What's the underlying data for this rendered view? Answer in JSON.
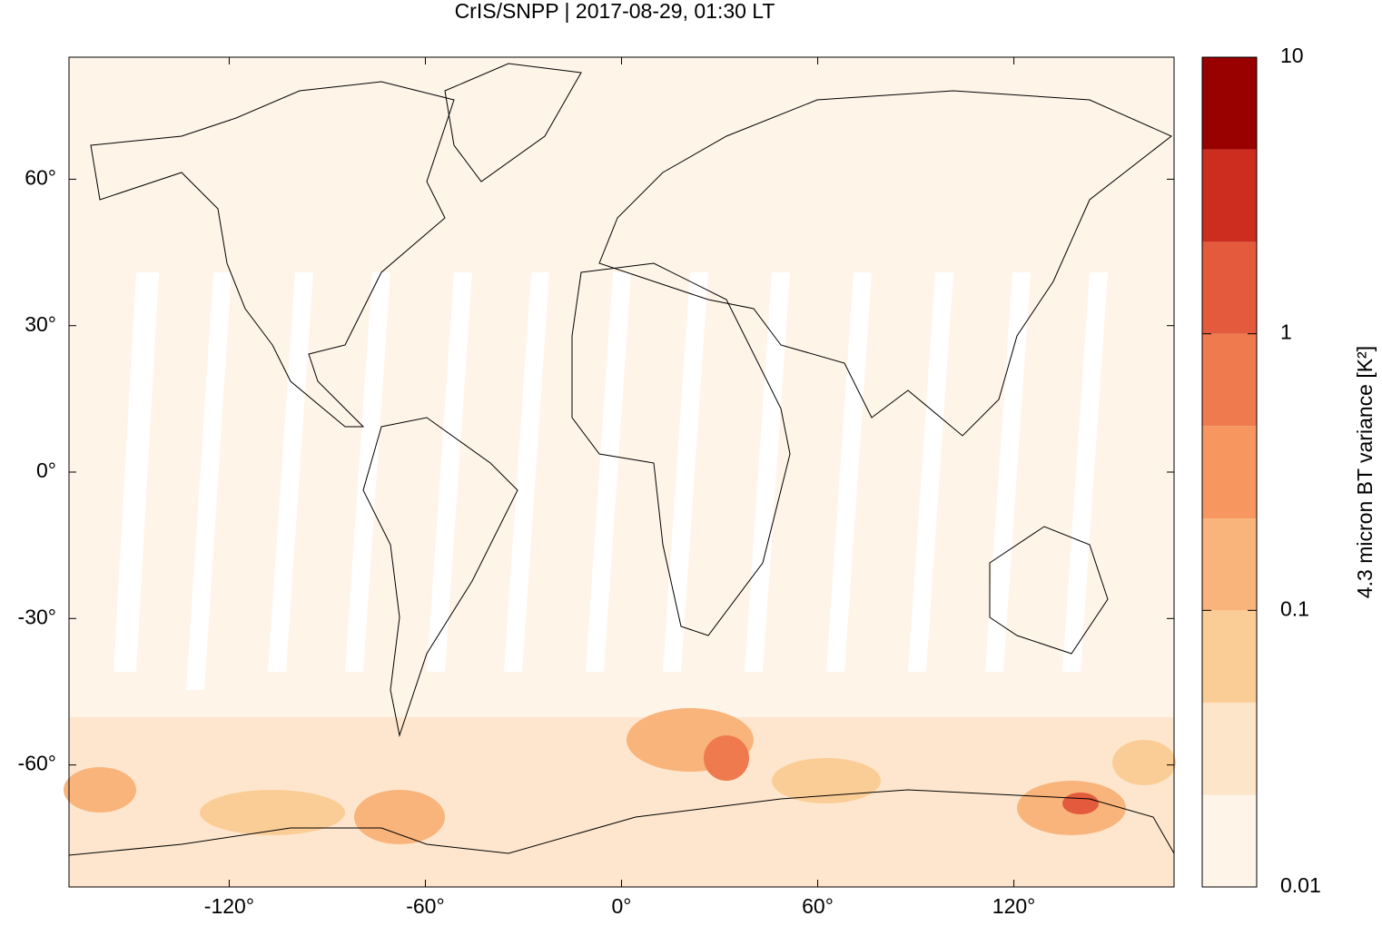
{
  "chart_data": {
    "type": "map",
    "title": "CrIS/SNPP | 2017-08-29, 01:30 LT",
    "xlim": [
      -169,
      169
    ],
    "ylim": [
      -85,
      85
    ],
    "xticks": [
      {
        "value": -120,
        "label": "-120°"
      },
      {
        "value": -60,
        "label": "-60°"
      },
      {
        "value": 0,
        "label": "0°"
      },
      {
        "value": 60,
        "label": "60°"
      },
      {
        "value": 120,
        "label": "120°"
      }
    ],
    "yticks": [
      {
        "value": 60,
        "label": "60°"
      },
      {
        "value": 30,
        "label": "30°"
      },
      {
        "value": 0,
        "label": "0°"
      },
      {
        "value": -30,
        "label": "-30°"
      },
      {
        "value": -60,
        "label": "-60°"
      }
    ],
    "colorbar": {
      "label": "4.3 micron BT variance [K²]",
      "log_scale": true,
      "lim": [
        0.01,
        10
      ],
      "ticks": [
        10,
        1,
        0.1,
        0.01
      ],
      "bins": [
        0.01,
        0.0215,
        0.0464,
        0.1,
        0.215,
        0.464,
        1,
        2.15,
        4.64,
        10
      ],
      "colors": [
        "#fef4e8",
        "#fce5c9",
        "#fbcd96",
        "#f9b47b",
        "#f7975f",
        "#ef7a4d",
        "#e35a3d",
        "#cc2d1f",
        "#990000"
      ]
    }
  }
}
